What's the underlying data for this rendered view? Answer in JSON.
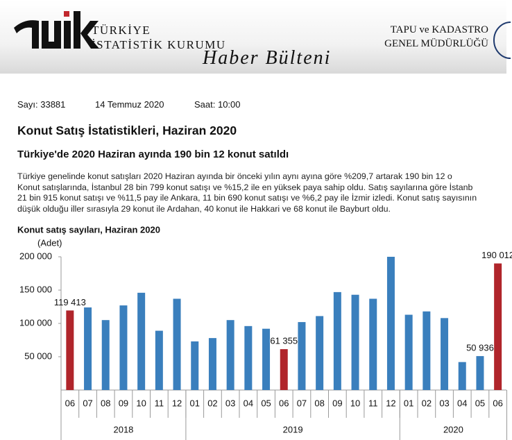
{
  "header": {
    "org_lines": [
      "TÜRKİYE",
      "İSTATİSTİK KURUMU"
    ],
    "bulletin": "Haber Bülteni",
    "partner_lines": [
      "TAPU ve KADASTRO",
      "GENEL MÜDÜRLÜĞÜ"
    ]
  },
  "meta": {
    "number": "Sayı: 33881",
    "date": "14 Temmuz 2020",
    "time": "Saat: 10:00"
  },
  "title": "Konut Satış İstatistikleri, Haziran 2020",
  "subtitle": "Türkiye'de 2020 Haziran ayında 190 bin 12 konut satıldı",
  "paragraph_lines": [
    "Türkiye genelinde konut satışları 2020 Haziran ayında bir önceki yılın aynı ayına göre %209,7 artarak 190 bin 12 o",
    "Konut satışlarında, İstanbul 28 bin 799 konut satışı ve %15,2 ile en yüksek paya sahip oldu. Satış sayılarına göre İstanb",
    "21 bin 915 konut satışı ve %11,5 pay ile Ankara, 11 bin 690 konut satışı ve %6,2 pay ile İzmir izledi. Konut satış sayısının",
    "düşük olduğu iller sırasıyla 29 konut ile Ardahan, 40 konut ile Hakkari ve 68 konut ile Bayburt oldu."
  ],
  "chart_data": {
    "type": "bar",
    "title": "Konut satış sayıları, Haziran 2020",
    "y_label": "(Adet)",
    "categories": [
      "06",
      "07",
      "08",
      "09",
      "10",
      "11",
      "12",
      "01",
      "02",
      "03",
      "04",
      "05",
      "06",
      "07",
      "08",
      "09",
      "10",
      "11",
      "12",
      "01",
      "02",
      "03",
      "04",
      "05",
      "06"
    ],
    "groups": [
      "2018",
      "2019",
      "2020"
    ],
    "values": [
      119413,
      124000,
      105000,
      127000,
      146000,
      89000,
      137000,
      73000,
      78000,
      105000,
      96000,
      92000,
      61355,
      102000,
      111000,
      147000,
      143000,
      137000,
      200000,
      113000,
      118000,
      108000,
      42000,
      50936,
      190012
    ],
    "value_labels": [
      "119 413",
      null,
      null,
      null,
      null,
      null,
      null,
      null,
      null,
      null,
      null,
      null,
      "61 355",
      null,
      null,
      null,
      null,
      null,
      null,
      null,
      null,
      null,
      null,
      "50 936",
      "190 012"
    ],
    "colors": [
      "#b0252b",
      "#3a7fbd",
      "#3a7fbd",
      "#3a7fbd",
      "#3a7fbd",
      "#3a7fbd",
      "#3a7fbd",
      "#3a7fbd",
      "#3a7fbd",
      "#3a7fbd",
      "#3a7fbd",
      "#3a7fbd",
      "#b0252b",
      "#3a7fbd",
      "#3a7fbd",
      "#3a7fbd",
      "#3a7fbd",
      "#3a7fbd",
      "#3a7fbd",
      "#3a7fbd",
      "#3a7fbd",
      "#3a7fbd",
      "#3a7fbd",
      "#3a7fbd",
      "#b0252b"
    ],
    "ylim": [
      0,
      200000
    ],
    "yticks": [
      {
        "value": 50000,
        "label": "50 000"
      },
      {
        "value": 100000,
        "label": "100 000"
      },
      {
        "value": 150000,
        "label": "150 000"
      },
      {
        "value": 200000,
        "label": "200 000"
      }
    ]
  }
}
